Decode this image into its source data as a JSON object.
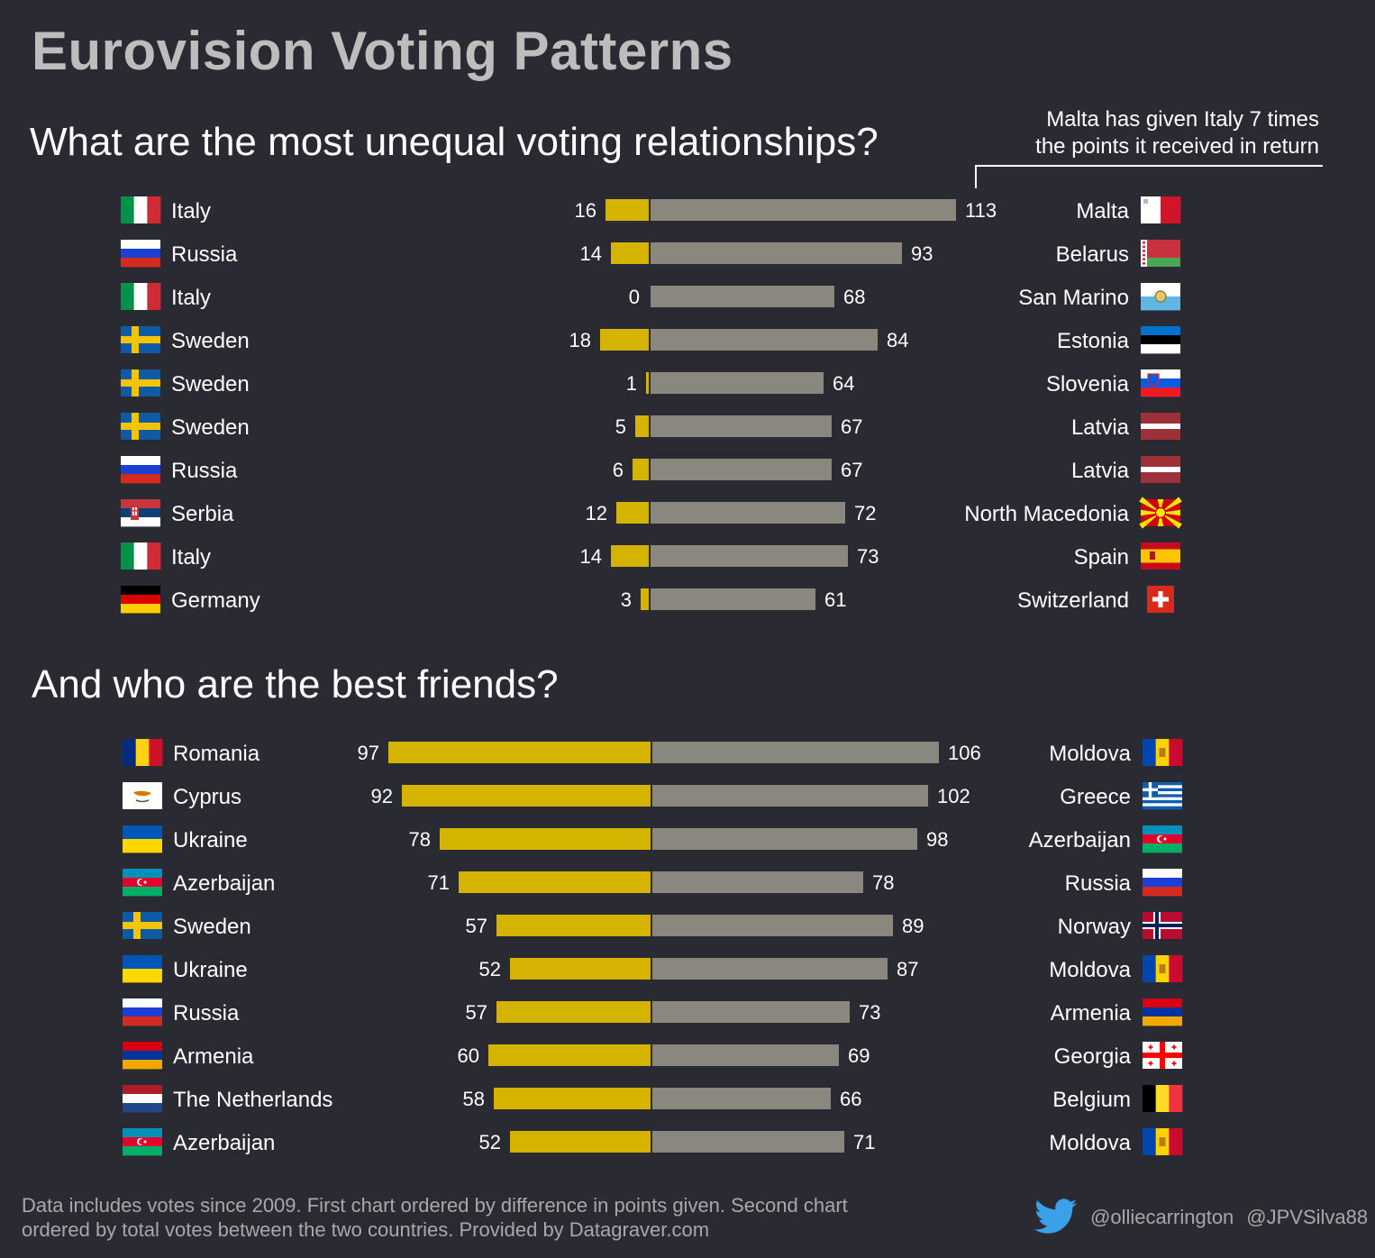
{
  "title": "Eurovision Voting Patterns",
  "colors": {
    "background": "#2a2a33",
    "given_bar": "#d4b400",
    "received_bar": "#8a877e",
    "text": "#ffffff",
    "title": "#bdbdbd",
    "footer": "#a8a8a8",
    "twitter": "#3aa0e8"
  },
  "annotation": {
    "line1": "Malta has given Italy 7 times",
    "line2": "the points it received in return"
  },
  "footer": {
    "line1": "Data includes votes since 2009. First chart ordered by difference in points given. Second chart",
    "line2": "ordered by total votes between the two countries. Provided by Datagraver.com"
  },
  "social": {
    "icon": "twitter-bird-icon",
    "handle1": "@olliecarrington",
    "handle2": "@JPVSilva88"
  },
  "chart_data": [
    {
      "type": "bar",
      "orientation": "horizontal-diverging",
      "title": "What are the most unequal voting relationships?",
      "series": [
        {
          "name": "points received by right country from left country",
          "color": "#d4b400",
          "values": [
            16,
            14,
            0,
            18,
            1,
            5,
            6,
            12,
            14,
            3
          ]
        },
        {
          "name": "points given by right country to left country",
          "color": "#8a877e",
          "values": [
            113,
            93,
            68,
            84,
            64,
            67,
            67,
            72,
            73,
            61
          ]
        }
      ],
      "left_countries": [
        "Italy",
        "Russia",
        "Italy",
        "Sweden",
        "Sweden",
        "Sweden",
        "Russia",
        "Serbia",
        "Italy",
        "Germany"
      ],
      "right_countries": [
        "Malta",
        "Belarus",
        "San Marino",
        "Estonia",
        "Slovenia",
        "Latvia",
        "Latvia",
        "North Macedonia",
        "Spain",
        "Switzerland"
      ],
      "left_flags": [
        "italy-flag-icon",
        "russia-flag-icon",
        "italy-flag-icon",
        "sweden-flag-icon",
        "sweden-flag-icon",
        "sweden-flag-icon",
        "russia-flag-icon",
        "serbia-flag-icon",
        "italy-flag-icon",
        "germany-flag-icon"
      ],
      "right_flags": [
        "malta-flag-icon",
        "belarus-flag-icon",
        "san-marino-flag-icon",
        "estonia-flag-icon",
        "slovenia-flag-icon",
        "latvia-flag-icon",
        "latvia-flag-icon",
        "north-macedonia-flag-icon",
        "spain-flag-icon",
        "switzerland-flag-icon"
      ]
    },
    {
      "type": "bar",
      "orientation": "horizontal-diverging",
      "title": "And who are the best friends?",
      "series": [
        {
          "name": "points given by left country",
          "color": "#d4b400",
          "values": [
            97,
            92,
            78,
            71,
            57,
            52,
            57,
            60,
            58,
            52
          ]
        },
        {
          "name": "points given by right country",
          "color": "#8a877e",
          "values": [
            106,
            102,
            98,
            78,
            89,
            87,
            73,
            69,
            66,
            71
          ]
        }
      ],
      "left_countries": [
        "Romania",
        "Cyprus",
        "Ukraine",
        "Azerbaijan",
        "Sweden",
        "Ukraine",
        "Russia",
        "Armenia",
        "The Netherlands",
        "Azerbaijan"
      ],
      "right_countries": [
        "Moldova",
        "Greece",
        "Azerbaijan",
        "Russia",
        "Norway",
        "Moldova",
        "Armenia",
        "Georgia",
        "Belgium",
        "Moldova"
      ],
      "left_flags": [
        "romania-flag-icon",
        "cyprus-flag-icon",
        "ukraine-flag-icon",
        "azerbaijan-flag-icon",
        "sweden-flag-icon",
        "ukraine-flag-icon",
        "russia-flag-icon",
        "armenia-flag-icon",
        "netherlands-flag-icon",
        "azerbaijan-flag-icon"
      ],
      "right_flags": [
        "moldova-flag-icon",
        "greece-flag-icon",
        "azerbaijan-flag-icon",
        "russia-flag-icon",
        "norway-flag-icon",
        "moldova-flag-icon",
        "armenia-flag-icon",
        "georgia-flag-icon",
        "belgium-flag-icon",
        "moldova-flag-icon"
      ]
    }
  ]
}
